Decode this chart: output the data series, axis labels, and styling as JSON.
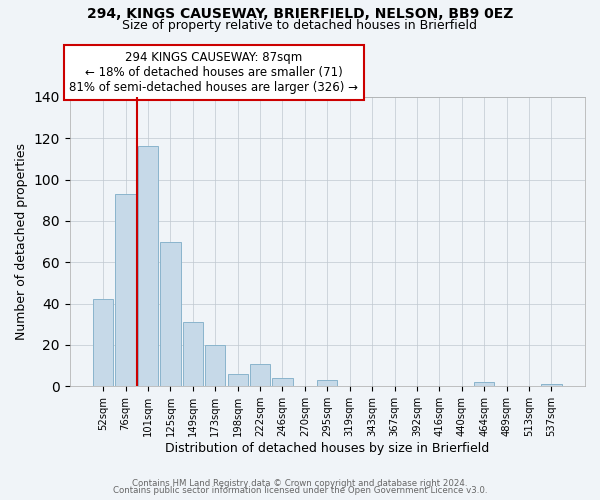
{
  "title1": "294, KINGS CAUSEWAY, BRIERFIELD, NELSON, BB9 0EZ",
  "title2": "Size of property relative to detached houses in Brierfield",
  "xlabel": "Distribution of detached houses by size in Brierfield",
  "ylabel": "Number of detached properties",
  "categories": [
    "52sqm",
    "76sqm",
    "101sqm",
    "125sqm",
    "149sqm",
    "173sqm",
    "198sqm",
    "222sqm",
    "246sqm",
    "270sqm",
    "295sqm",
    "319sqm",
    "343sqm",
    "367sqm",
    "392sqm",
    "416sqm",
    "440sqm",
    "464sqm",
    "489sqm",
    "513sqm",
    "537sqm"
  ],
  "values": [
    42,
    93,
    116,
    70,
    31,
    20,
    6,
    11,
    4,
    0,
    3,
    0,
    0,
    0,
    0,
    0,
    0,
    2,
    0,
    0,
    1
  ],
  "bar_color": "#c6d9e8",
  "bar_edge_color": "#8ab4cc",
  "vline_x": 1.5,
  "vline_color": "#cc0000",
  "annotation_line1": "294 KINGS CAUSEWAY: 87sqm",
  "annotation_line2": "← 18% of detached houses are smaller (71)",
  "annotation_line3": "81% of semi-detached houses are larger (326) →",
  "ylim": [
    0,
    140
  ],
  "yticks": [
    0,
    20,
    40,
    60,
    80,
    100,
    120,
    140
  ],
  "footer1": "Contains HM Land Registry data © Crown copyright and database right 2024.",
  "footer2": "Contains public sector information licensed under the Open Government Licence v3.0.",
  "bg_color": "#f0f4f8"
}
